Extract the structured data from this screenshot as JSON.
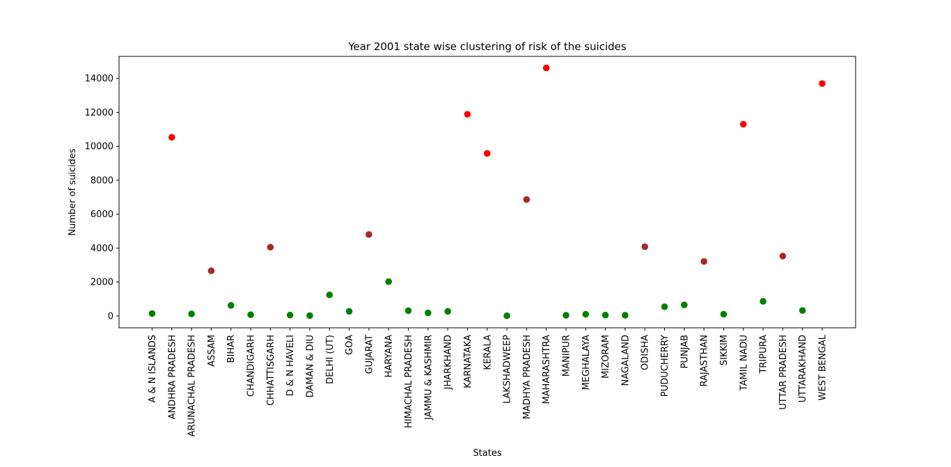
{
  "chart_data": {
    "type": "scatter",
    "title": "Year 2001 state wise clustering of risk of the suicides",
    "xlabel": "States",
    "ylabel": "Number of suicides",
    "ylim": [
      -700,
      15300
    ],
    "yticks": [
      0,
      2000,
      4000,
      6000,
      8000,
      10000,
      12000,
      14000
    ],
    "grid": false,
    "categories": [
      "A & N ISLANDS",
      "ANDHRA PRADESH",
      "ARUNACHAL PRADESH",
      "ASSAM",
      "BIHAR",
      "CHANDIGARH",
      "CHHATTISGARH",
      "D & N HAVELI",
      "DAMAN & DIU",
      "DELHI (UT)",
      "GOA",
      "GUJARAT",
      "HARYANA",
      "HIMACHAL PRADESH",
      "JAMMU & KASHMIR",
      "JHARKHAND",
      "KARNATAKA",
      "KERALA",
      "LAKSHADWEEP",
      "MADHYA PRADESH",
      "MAHARASHTRA",
      "MANIPUR",
      "MEGHALAYA",
      "MIZORAM",
      "NAGALAND",
      "ODISHA",
      "PUDUCHERRY",
      "PUNJAB",
      "RAJASTHAN",
      "SIKKIM",
      "TAMIL NADU",
      "TRIPURA",
      "UTTAR PRADESH",
      "UTTARAKHAND",
      "WEST BENGAL"
    ],
    "values": [
      140,
      10530,
      120,
      2660,
      620,
      70,
      4050,
      50,
      20,
      1240,
      270,
      4800,
      2020,
      310,
      180,
      270,
      11890,
      9580,
      10,
      6860,
      14620,
      40,
      100,
      50,
      40,
      4080,
      540,
      650,
      3210,
      100,
      11300,
      860,
      3530,
      320,
      13700
    ],
    "clusters": [
      "low",
      "high",
      "low",
      "medium",
      "low",
      "low",
      "medium",
      "low",
      "low",
      "low",
      "low",
      "medium",
      "low",
      "low",
      "low",
      "low",
      "high",
      "high",
      "low",
      "medium",
      "high",
      "low",
      "low",
      "low",
      "low",
      "medium",
      "low",
      "low",
      "medium",
      "low",
      "high",
      "low",
      "medium",
      "low",
      "high"
    ],
    "cluster_colors": {
      "low": "#008000",
      "medium": "#a52a2a",
      "high": "#ff0000"
    }
  }
}
